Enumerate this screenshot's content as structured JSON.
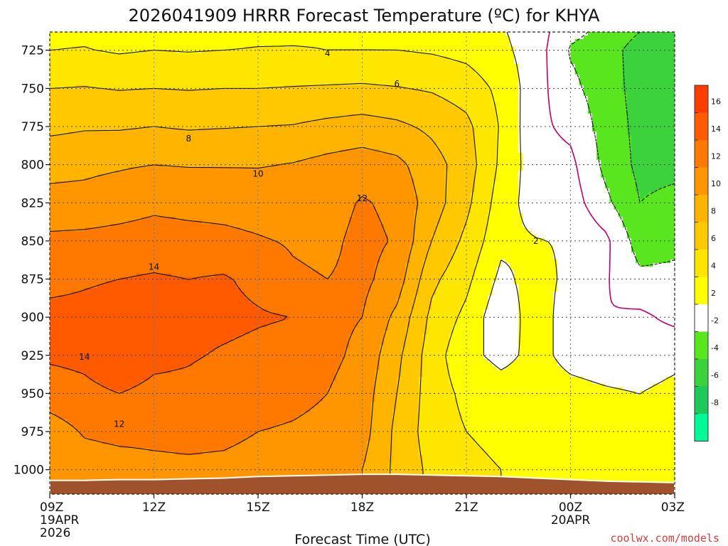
{
  "chart_data": {
    "type": "heatmap",
    "title": "2026041909 HRRR Forecast Temperature (ºC) for KHYA",
    "xlabel": "Forecast Time (UTC)",
    "x_ticks": [
      {
        "hour": 0,
        "label": "09Z",
        "date": "19APR",
        "year": "2026"
      },
      {
        "hour": 3,
        "label": "12Z"
      },
      {
        "hour": 6,
        "label": "15Z"
      },
      {
        "hour": 9,
        "label": "18Z"
      },
      {
        "hour": 12,
        "label": "21Z"
      },
      {
        "hour": 15,
        "label": "00Z",
        "date": "20APR"
      },
      {
        "hour": 18,
        "label": "03Z"
      }
    ],
    "xlim": [
      0,
      18
    ],
    "y_ticks": [
      725,
      750,
      775,
      800,
      825,
      850,
      875,
      900,
      925,
      950,
      975,
      1000
    ],
    "ylim": [
      1016,
      713
    ],
    "ylabel": "",
    "grid": true,
    "colorbar": {
      "labels": [
        "16",
        "14",
        "12",
        "10",
        "8",
        "6",
        "4",
        "2",
        "-2",
        "-4",
        "-6",
        "-8"
      ],
      "levels": [
        18,
        16,
        14,
        12,
        10,
        8,
        6,
        4,
        2,
        -2,
        -4,
        -6,
        -8,
        -10
      ],
      "colors": [
        "#ff3c00",
        "#ff5a00",
        "#ff7800",
        "#ff9600",
        "#ffb400",
        "#ffc800",
        "#ffe600",
        "#ffff00",
        "#ffffff",
        "#5ae61e",
        "#3cd23c",
        "#1ec85a",
        "#00fa96"
      ]
    },
    "surface_pressure_hpa": [
      1007,
      1007,
      1006.5,
      1006.5,
      1006,
      1005.5,
      1004.5,
      1004,
      1003.5,
      1003,
      1003,
      1003.5,
      1004,
      1004.5,
      1005.5,
      1006.5,
      1007.5,
      1008,
      1008.5
    ],
    "temperature_c": [
      {
        "hour": 0,
        "profile": [
          [
            713,
            3.5
          ],
          [
            725,
            4.0
          ],
          [
            750,
            6.0
          ],
          [
            775,
            7.5
          ],
          [
            800,
            9.5
          ],
          [
            825,
            10.5
          ],
          [
            850,
            12.5
          ],
          [
            875,
            13.5
          ],
          [
            900,
            14.5
          ],
          [
            925,
            14.3
          ],
          [
            950,
            13.0
          ],
          [
            975,
            11.0
          ],
          [
            1000,
            10.5
          ]
        ]
      },
      {
        "hour": 1,
        "profile": [
          [
            713,
            3.6
          ],
          [
            725,
            4.1
          ],
          [
            750,
            6.1
          ],
          [
            775,
            7.8
          ],
          [
            800,
            9.6
          ],
          [
            825,
            10.6
          ],
          [
            850,
            12.6
          ],
          [
            875,
            13.8
          ],
          [
            900,
            14.5
          ],
          [
            925,
            14.5
          ],
          [
            950,
            13.5
          ],
          [
            975,
            12.2
          ],
          [
            1000,
            11.0
          ]
        ]
      },
      {
        "hour": 2,
        "profile": [
          [
            713,
            3.2
          ],
          [
            725,
            3.8
          ],
          [
            750,
            5.9
          ],
          [
            775,
            7.8
          ],
          [
            800,
            9.8
          ],
          [
            825,
            11.0
          ],
          [
            850,
            12.8
          ],
          [
            875,
            14.0
          ],
          [
            900,
            14.8
          ],
          [
            925,
            15.5
          ],
          [
            950,
            14.0
          ],
          [
            975,
            12.5
          ],
          [
            1000,
            11.2
          ]
        ]
      },
      {
        "hour": 3,
        "profile": [
          [
            713,
            3.4
          ],
          [
            725,
            4.0
          ],
          [
            750,
            6.0
          ],
          [
            775,
            8.0
          ],
          [
            800,
            10.0
          ],
          [
            825,
            11.5
          ],
          [
            850,
            13.0
          ],
          [
            875,
            14.2
          ],
          [
            900,
            14.8
          ],
          [
            925,
            14.5
          ],
          [
            950,
            13.5
          ],
          [
            975,
            12.5
          ],
          [
            1000,
            11.5
          ]
        ]
      },
      {
        "hour": 4,
        "profile": [
          [
            713,
            3.3
          ],
          [
            725,
            3.9
          ],
          [
            750,
            5.9
          ],
          [
            775,
            7.8
          ],
          [
            800,
            9.9
          ],
          [
            825,
            11.3
          ],
          [
            850,
            12.8
          ],
          [
            875,
            14.0
          ],
          [
            900,
            14.6
          ],
          [
            925,
            14.2
          ],
          [
            950,
            13.5
          ],
          [
            975,
            12.6
          ],
          [
            1000,
            11.6
          ]
        ]
      },
      {
        "hour": 5,
        "profile": [
          [
            713,
            3.4
          ],
          [
            725,
            4.0
          ],
          [
            750,
            6.0
          ],
          [
            775,
            7.9
          ],
          [
            800,
            9.9
          ],
          [
            825,
            11.2
          ],
          [
            850,
            12.6
          ],
          [
            875,
            14.2
          ],
          [
            900,
            14.5
          ],
          [
            925,
            13.8
          ],
          [
            950,
            13.0
          ],
          [
            975,
            12.5
          ],
          [
            1000,
            11.5
          ]
        ]
      },
      {
        "hour": 6,
        "profile": [
          [
            713,
            3.6
          ],
          [
            725,
            4.1
          ],
          [
            750,
            6.0
          ],
          [
            775,
            8.0
          ],
          [
            800,
            9.9
          ],
          [
            825,
            11.0
          ],
          [
            850,
            12.2
          ],
          [
            875,
            13.5
          ],
          [
            900,
            14.2
          ],
          [
            925,
            13.5
          ],
          [
            950,
            12.8
          ],
          [
            975,
            12.0
          ],
          [
            1000,
            11.2
          ]
        ]
      },
      {
        "hour": 7,
        "profile": [
          [
            713,
            3.7
          ],
          [
            725,
            4.1
          ],
          [
            750,
            6.1
          ],
          [
            775,
            8.1
          ],
          [
            800,
            10.1
          ],
          [
            825,
            10.6
          ],
          [
            850,
            11.8
          ],
          [
            875,
            12.3
          ],
          [
            900,
            14.0
          ],
          [
            925,
            13.2
          ],
          [
            950,
            12.5
          ],
          [
            975,
            11.8
          ],
          [
            1000,
            11.0
          ]
        ]
      },
      {
        "hour": 8,
        "profile": [
          [
            713,
            3.8
          ],
          [
            725,
            4.0
          ],
          [
            750,
            6.2
          ],
          [
            775,
            8.5
          ],
          [
            800,
            10.6
          ],
          [
            825,
            11.1
          ],
          [
            850,
            11.5
          ],
          [
            875,
            12.0
          ],
          [
            900,
            12.5
          ],
          [
            925,
            12.5
          ],
          [
            950,
            12.0
          ],
          [
            975,
            11.5
          ],
          [
            1000,
            10.8
          ]
        ]
      },
      {
        "hour": 9,
        "profile": [
          [
            713,
            3.9
          ],
          [
            725,
            4.0
          ],
          [
            750,
            6.3
          ],
          [
            775,
            8.8
          ],
          [
            800,
            11.0
          ],
          [
            825,
            12.2
          ],
          [
            850,
            12.6
          ],
          [
            875,
            12.5
          ],
          [
            900,
            12.0
          ],
          [
            925,
            11.5
          ],
          [
            950,
            11.0
          ],
          [
            975,
            10.8
          ],
          [
            1000,
            10.0
          ]
        ]
      },
      {
        "hour": 10,
        "profile": [
          [
            713,
            3.6
          ],
          [
            725,
            4.0
          ],
          [
            750,
            6.1
          ],
          [
            775,
            8.4
          ],
          [
            800,
            10.5
          ],
          [
            825,
            11.5
          ],
          [
            850,
            11.8
          ],
          [
            875,
            11.0
          ],
          [
            900,
            9.5
          ],
          [
            925,
            8.5
          ],
          [
            950,
            8.0
          ],
          [
            975,
            7.5
          ],
          [
            1000,
            7.5
          ]
        ]
      },
      {
        "hour": 11,
        "profile": [
          [
            713,
            3.5
          ],
          [
            725,
            3.8
          ],
          [
            750,
            5.8
          ],
          [
            775,
            7.6
          ],
          [
            800,
            8.8
          ],
          [
            825,
            9.0
          ],
          [
            850,
            8.0
          ],
          [
            875,
            6.5
          ],
          [
            900,
            5.5
          ],
          [
            925,
            5.0
          ],
          [
            950,
            5.0
          ],
          [
            975,
            5.0
          ],
          [
            1000,
            5.5
          ]
        ]
      },
      {
        "hour": 12,
        "profile": [
          [
            713,
            3.0
          ],
          [
            725,
            3.4
          ],
          [
            750,
            5.1
          ],
          [
            775,
            6.5
          ],
          [
            800,
            7.0
          ],
          [
            825,
            6.5
          ],
          [
            850,
            5.5
          ],
          [
            875,
            4.5
          ],
          [
            900,
            3.5
          ],
          [
            925,
            2.5
          ],
          [
            950,
            3.5
          ],
          [
            975,
            4.0
          ],
          [
            1000,
            4.5
          ]
        ]
      },
      {
        "hour": 13,
        "profile": [
          [
            713,
            2.2
          ],
          [
            725,
            2.5
          ],
          [
            750,
            3.5
          ],
          [
            775,
            3.8
          ],
          [
            800,
            3.6
          ],
          [
            825,
            3.0
          ],
          [
            850,
            2.5
          ],
          [
            875,
            1.5
          ],
          [
            900,
            0.5
          ],
          [
            925,
            1.5
          ],
          [
            950,
            2.8
          ],
          [
            975,
            3.5
          ],
          [
            1000,
            4.0
          ]
        ]
      },
      {
        "hour": 14,
        "profile": [
          [
            713,
            1.0
          ],
          [
            725,
            1.0
          ],
          [
            750,
            0.8
          ],
          [
            775,
            0.5
          ],
          [
            800,
            0.8
          ],
          [
            825,
            1.0
          ],
          [
            850,
            2.1
          ],
          [
            875,
            2.8
          ],
          [
            900,
            3.2
          ],
          [
            925,
            2.5
          ],
          [
            950,
            2.8
          ],
          [
            975,
            3.2
          ],
          [
            1000,
            3.6
          ]
        ]
      },
      {
        "hour": 15,
        "profile": [
          [
            713,
            -1.5
          ],
          [
            725,
            -2.2
          ],
          [
            750,
            -1.5
          ],
          [
            775,
            -0.5
          ],
          [
            800,
            0.5
          ],
          [
            825,
            1.0
          ],
          [
            850,
            1.8
          ],
          [
            875,
            1.5
          ],
          [
            900,
            0.8
          ],
          [
            925,
            1.5
          ],
          [
            950,
            2.5
          ],
          [
            975,
            3.0
          ],
          [
            1000,
            3.5
          ]
        ]
      },
      {
        "hour": 16,
        "profile": [
          [
            713,
            -2.5
          ],
          [
            725,
            -3.0
          ],
          [
            750,
            -3.0
          ],
          [
            775,
            -2.8
          ],
          [
            800,
            -2.5
          ],
          [
            825,
            -1.5
          ],
          [
            850,
            0.5
          ],
          [
            875,
            0.2
          ],
          [
            900,
            0.0
          ],
          [
            925,
            1.2
          ],
          [
            950,
            2.2
          ],
          [
            975,
            2.5
          ],
          [
            1000,
            2.8
          ]
        ]
      },
      {
        "hour": 17,
        "profile": [
          [
            713,
            -4.0
          ],
          [
            725,
            -5.0
          ],
          [
            750,
            -4.8
          ],
          [
            775,
            -4.6
          ],
          [
            800,
            -4.5
          ],
          [
            825,
            -4.0
          ],
          [
            850,
            -3.0
          ],
          [
            875,
            -1.5
          ],
          [
            900,
            0.4
          ],
          [
            925,
            1.0
          ],
          [
            950,
            2.0
          ],
          [
            975,
            2.4
          ],
          [
            1000,
            2.5
          ]
        ]
      },
      {
        "hour": 18,
        "profile": [
          [
            713,
            -5.0
          ],
          [
            725,
            -5.8
          ],
          [
            750,
            -5.6
          ],
          [
            775,
            -5.0
          ],
          [
            800,
            -4.5
          ],
          [
            825,
            -3.5
          ],
          [
            850,
            -2.5
          ],
          [
            875,
            -1.5
          ],
          [
            900,
            -0.5
          ],
          [
            925,
            1.5
          ],
          [
            950,
            2.5
          ],
          [
            975,
            2.5
          ],
          [
            1000,
            2.5
          ]
        ]
      }
    ],
    "contour_labels": [
      {
        "text": "4",
        "hour": 8,
        "p": 727
      },
      {
        "text": "6",
        "hour": 10,
        "p": 747
      },
      {
        "text": "8",
        "hour": 4,
        "p": 783
      },
      {
        "text": "10",
        "hour": 6,
        "p": 806
      },
      {
        "text": "12",
        "hour": 9,
        "p": 822
      },
      {
        "text": "14",
        "hour": 3,
        "p": 867
      },
      {
        "text": "14",
        "hour": 1,
        "p": 926
      },
      {
        "text": "12",
        "hour": 2,
        "p": 970
      },
      {
        "text": "2",
        "hour": 14,
        "p": 850
      }
    ]
  },
  "credit": "coolwx.com/models"
}
